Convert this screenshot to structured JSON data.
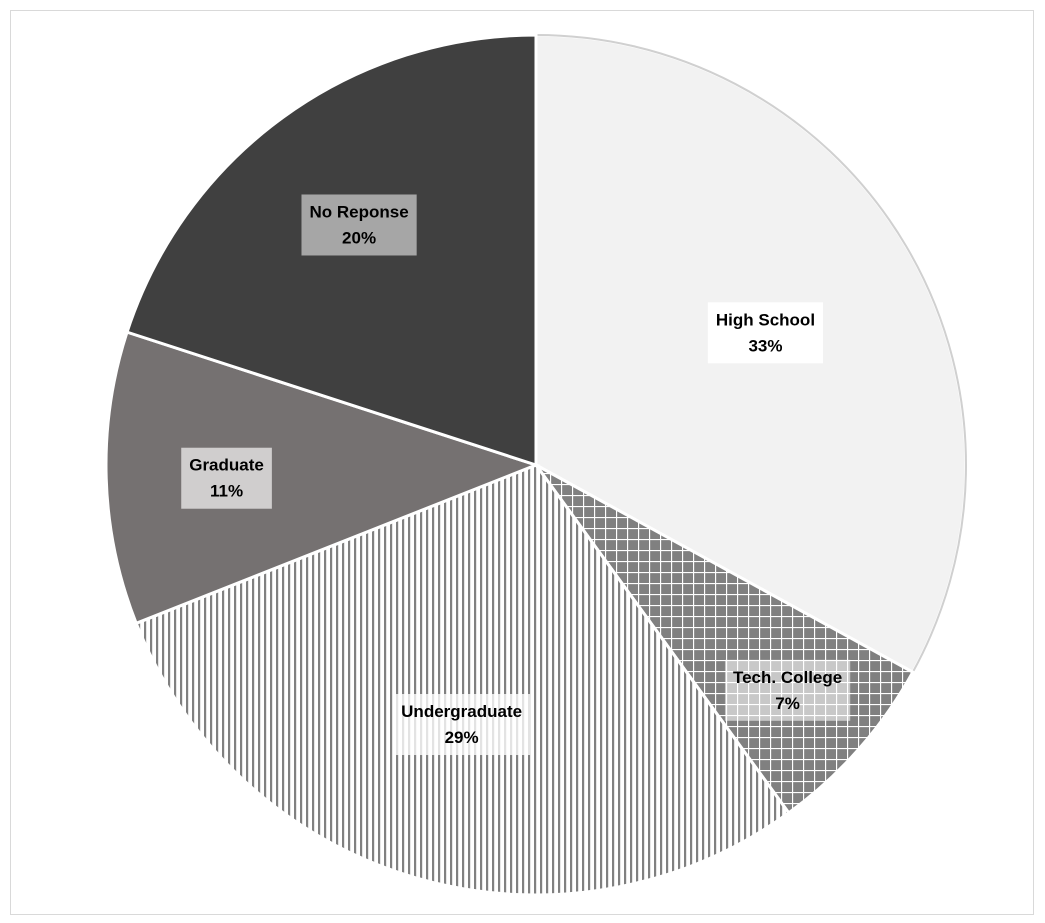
{
  "chart_data": {
    "type": "pie",
    "slices": [
      {
        "label": "High School",
        "value": 33,
        "percent_label": "33%",
        "fill": "#f2f2f2",
        "pattern": "solid",
        "label_bg": "#ffffff"
      },
      {
        "label": "Tech. College",
        "value": 7,
        "percent_label": "7%",
        "fill": "#808080",
        "pattern": "grid",
        "label_bg": "#c0c0c0"
      },
      {
        "label": "Undergraduate",
        "value": 29,
        "percent_label": "29%",
        "fill": "#ffffff",
        "pattern": "vertical-stripes",
        "label_bg": "#ffffff"
      },
      {
        "label": "Graduate",
        "value": 11,
        "percent_label": "11%",
        "fill": "#757171",
        "pattern": "solid",
        "label_bg": "#d0cece"
      },
      {
        "label": "No Reponse",
        "value": 20,
        "percent_label": "20%",
        "fill": "#404040",
        "pattern": "solid",
        "label_bg": "#a6a6a6"
      }
    ],
    "start_angle_deg": 0,
    "direction": "clockwise",
    "legend": "none",
    "data_labels": "inside"
  }
}
